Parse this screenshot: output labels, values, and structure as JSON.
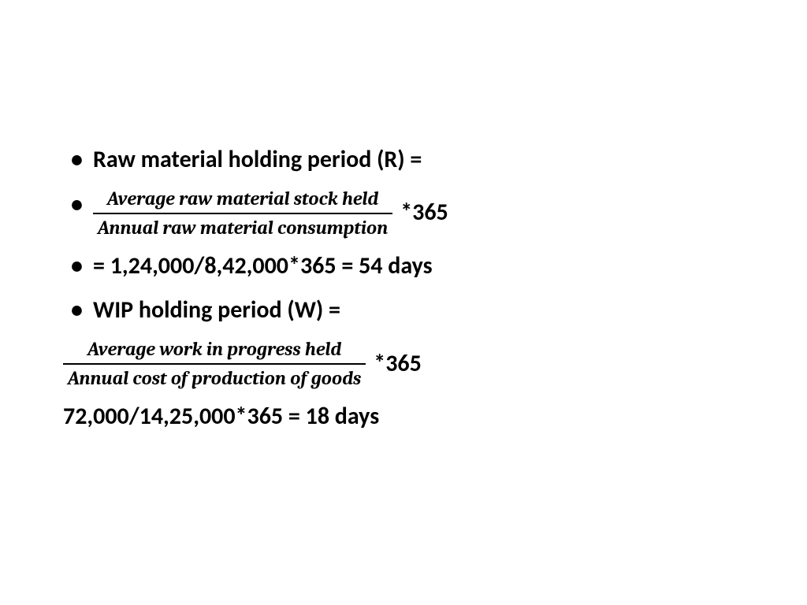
{
  "background_color": "#ffffff",
  "text_color": "#000000",
  "body_font": "Calibri",
  "math_font": "Cambria Math",
  "body_fontsize": 30,
  "math_fontsize": 24,
  "font_weight": 700,
  "bullets": {
    "b1": "Raw material holding period (R) =",
    "b2_frac_num": "Average raw material stock held",
    "b2_frac_den": "Annual raw material consumption",
    "b2_suffix": " *365",
    "b3": "= 1,24,000/8,42,000*365 = 54 days",
    "b4": "WIP holding period (W) ="
  },
  "plain": {
    "p1_frac_num": "Average work in progress  held",
    "p1_frac_den": "Annual cost of production of goods",
    "p1_suffix": " *365",
    "p2": "72,000/14,25,000*365 = 18 days"
  }
}
